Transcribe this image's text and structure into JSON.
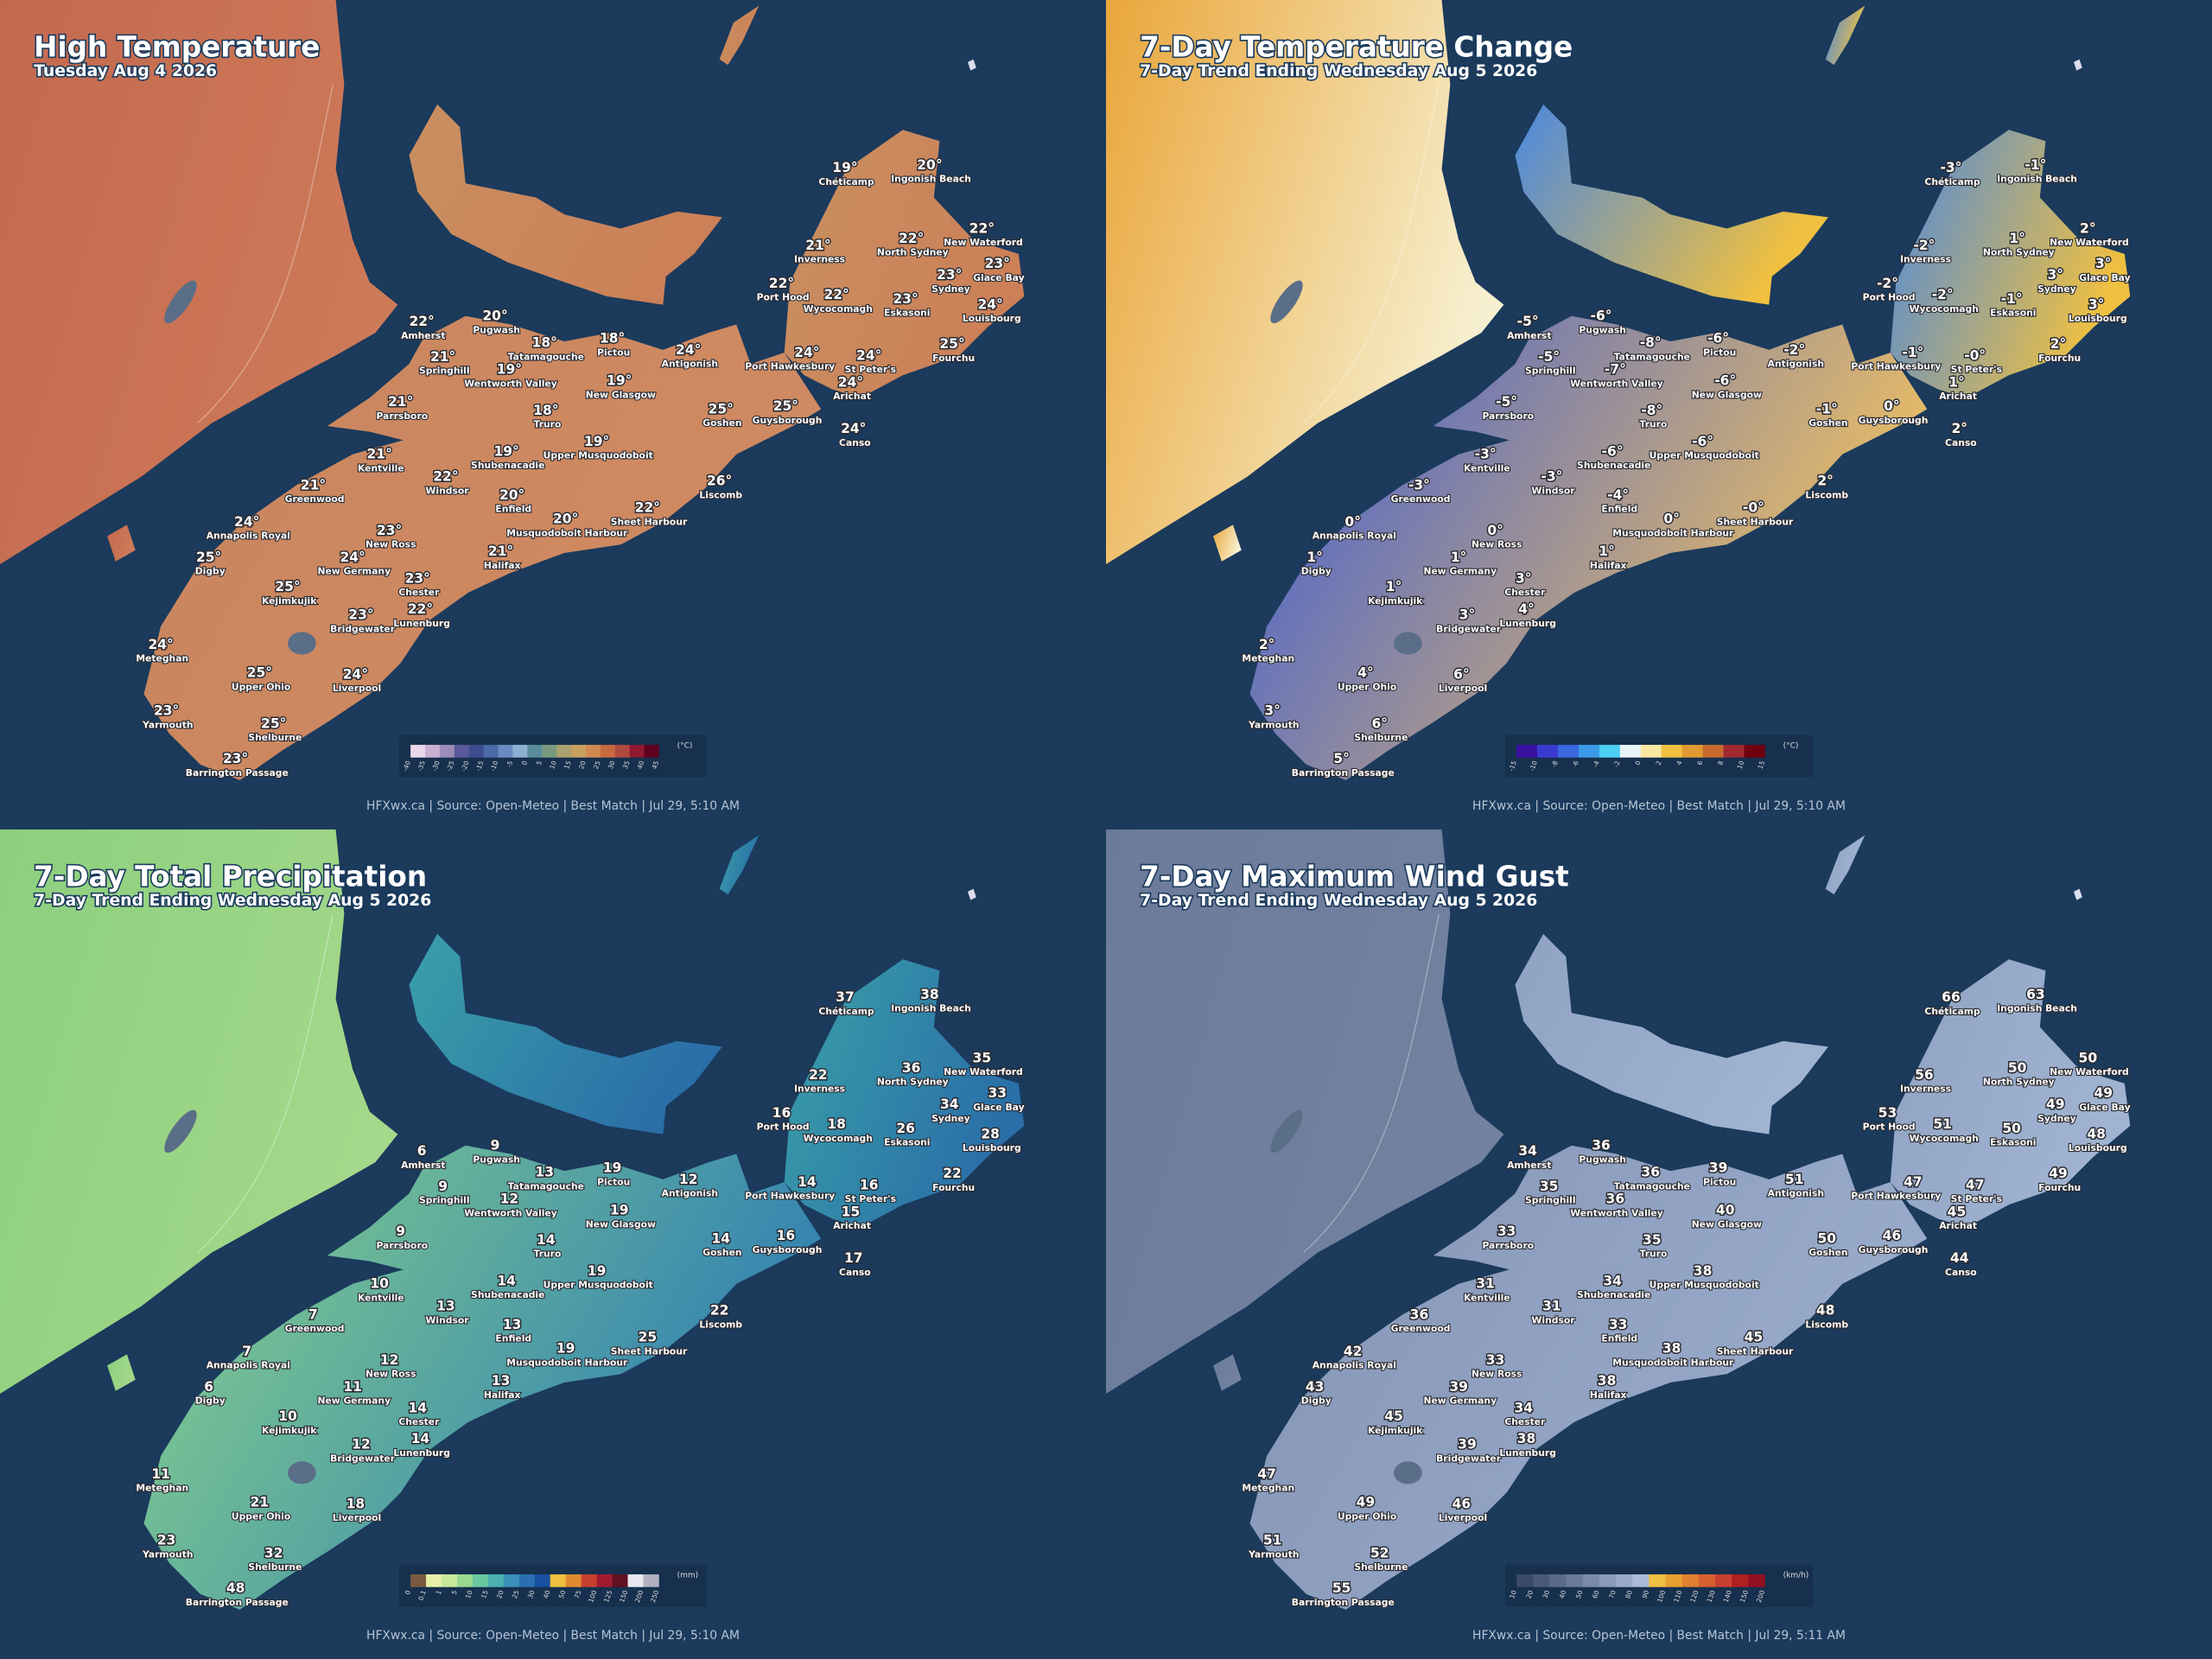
{
  "cities": [
    "Chéticamp",
    "Ingonish Beach",
    "Inverness",
    "North Sydney",
    "New Waterford",
    "Glace Bay",
    "Sydney",
    "Port Hood",
    "Wycocomagh",
    "Eskasoni",
    "Louisbourg",
    "Amherst",
    "Pugwash",
    "Pictou",
    "Tatamagouche",
    "Antigonish",
    "Springhill",
    "Wentworth Valley",
    "Port Hawkesbury",
    "St Peter's",
    "Fourchu",
    "New Glasgow",
    "Arichat",
    "Parrsboro",
    "Goshen",
    "Guysborough",
    "Truro",
    "Canso",
    "Kentville",
    "Shubenacadie",
    "Upper Musquodoboit",
    "Windsor",
    "Liscomb",
    "Greenwood",
    "Enfield",
    "Musquodoboit Harbour",
    "Sheet Harbour",
    "Annapolis Royal",
    "New Ross",
    "Digby",
    "New Germany",
    "Halifax",
    "Kejimkujik",
    "Chester",
    "Bridgewater",
    "Lunenburg",
    "Meteghan",
    "Upper Ohio",
    "Liverpool",
    "Yarmouth",
    "Shelburne",
    "Barrington Passage"
  ],
  "panels": [
    {
      "title": "High Temperature",
      "subtitle": "Tuesday Aug 4 2026",
      "values": [
        "19°",
        "20°",
        "21°",
        "22°",
        "22°",
        "23°",
        "23°",
        "22°",
        "22°",
        "23°",
        "24°",
        "22°",
        "20°",
        "18°",
        "18°",
        "24°",
        "21°",
        "19°",
        "24°",
        "24°",
        "25°",
        "19°",
        "24°",
        "21°",
        "25°",
        "25°",
        "18°",
        "24°",
        "21°",
        "19°",
        "19°",
        "22°",
        "26°",
        "21°",
        "20°",
        "20°",
        "22°",
        "24°",
        "23°",
        "25°",
        "24°",
        "21°",
        "25°",
        "23°",
        "23°",
        "22°",
        "24°",
        "25°",
        "24°",
        "23°",
        "25°",
        "23°"
      ],
      "legend": {
        "unit": "(°C)",
        "ticks": [
          "-40",
          "-35",
          "-30",
          "-25",
          "-20",
          "-15",
          "-10",
          "-5",
          "0",
          "5",
          "10",
          "15",
          "20",
          "25",
          "30",
          "35",
          "40",
          "45"
        ]
      },
      "footer": "HFXwx.ca | Source: Open-Meteo | Best Match | Jul 29, 5:10 AM"
    },
    {
      "title": "7-Day Temperature Change",
      "subtitle": "7-Day Trend Ending Wednesday Aug 5 2026",
      "values": [
        "-3°",
        "-1°",
        "-2°",
        "1°",
        "2°",
        "3°",
        "3°",
        "-2°",
        "-2°",
        "-1°",
        "3°",
        "-5°",
        "-6°",
        "-6°",
        "-8°",
        "-2°",
        "-5°",
        "-7°",
        "-1°",
        "-0°",
        "2°",
        "-6°",
        "1°",
        "-5°",
        "-1°",
        "0°",
        "-8°",
        "2°",
        "-3°",
        "-6°",
        "-6°",
        "-3°",
        "2°",
        "-3°",
        "-4°",
        "0°",
        "-0°",
        "0°",
        "0°",
        "1°",
        "1°",
        "1°",
        "1°",
        "3°",
        "3°",
        "4°",
        "2°",
        "4°",
        "6°",
        "3°",
        "6°",
        "5°"
      ],
      "legend": {
        "unit": "(°C)",
        "ticks": [
          "-15",
          "-10",
          "-8",
          "-6",
          "-4",
          "-2",
          "0",
          "2",
          "4",
          "6",
          "8",
          "10",
          "15"
        ]
      },
      "footer": "HFXwx.ca | Source: Open-Meteo | Best Match | Jul 29, 5:10 AM"
    },
    {
      "title": "7-Day Total Precipitation",
      "subtitle": "7-Day Trend Ending Wednesday Aug 5 2026",
      "values": [
        "37",
        "38",
        "22",
        "36",
        "35",
        "33",
        "34",
        "16",
        "18",
        "26",
        "28",
        "6",
        "9",
        "19",
        "13",
        "12",
        "9",
        "12",
        "14",
        "16",
        "22",
        "19",
        "15",
        "9",
        "14",
        "16",
        "14",
        "17",
        "10",
        "14",
        "19",
        "13",
        "22",
        "7",
        "13",
        "19",
        "25",
        "7",
        "12",
        "6",
        "11",
        "13",
        "10",
        "14",
        "12",
        "14",
        "11",
        "21",
        "18",
        "23",
        "32",
        "48"
      ],
      "legend": {
        "unit": "(mm)",
        "ticks": [
          "0",
          "0.1",
          "1",
          "5",
          "10",
          "15",
          "20",
          "25",
          "30",
          "40",
          "50",
          "75",
          "100",
          "125",
          "150",
          "200",
          "250"
        ]
      },
      "footer": "HFXwx.ca | Source: Open-Meteo | Best Match | Jul 29, 5:10 AM"
    },
    {
      "title": "7-Day Maximum Wind Gust",
      "subtitle": "7-Day Trend Ending Wednesday Aug 5 2026",
      "values": [
        "66",
        "63",
        "56",
        "50",
        "50",
        "49",
        "49",
        "53",
        "51",
        "50",
        "48",
        "34",
        "36",
        "39",
        "36",
        "51",
        "35",
        "36",
        "47",
        "47",
        "49",
        "40",
        "45",
        "33",
        "50",
        "46",
        "35",
        "44",
        "31",
        "34",
        "38",
        "31",
        "48",
        "36",
        "33",
        "38",
        "45",
        "42",
        "33",
        "43",
        "39",
        "38",
        "45",
        "34",
        "39",
        "38",
        "47",
        "49",
        "46",
        "51",
        "52",
        "55"
      ],
      "legend": {
        "unit": "(km/h)",
        "ticks": [
          "10",
          "20",
          "30",
          "40",
          "50",
          "60",
          "70",
          "80",
          "90",
          "100",
          "110",
          "120",
          "130",
          "140",
          "150",
          "200"
        ]
      },
      "footer": "HFXwx.ca | Source: Open-Meteo | Best Match | Jul 29, 5:11 AM"
    }
  ]
}
